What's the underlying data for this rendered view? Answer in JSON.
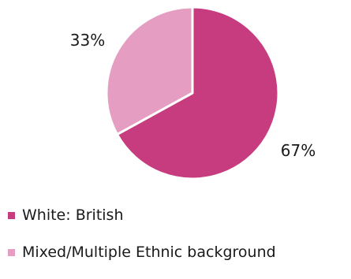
{
  "chart_data": {
    "type": "pie",
    "title": "",
    "categories": [
      "White: British",
      "Mixed/Multiple Ethnic background"
    ],
    "values": [
      67,
      33
    ],
    "data_labels": [
      "67%",
      "33%"
    ],
    "colors": [
      "#c73b7f",
      "#e59ec2"
    ],
    "start": "12 o'clock",
    "direction": "clockwise",
    "legend_position": "bottom"
  }
}
